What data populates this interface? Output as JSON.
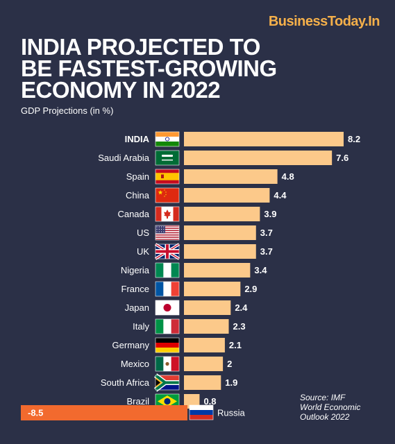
{
  "brand": "BusinessToday.In",
  "title_lines": [
    "INDIA PROJECTED TO",
    "BE FASTEST-GROWING",
    "ECONOMY IN 2022"
  ],
  "subtitle": "GDP Projections (in %)",
  "source_lines": [
    "Source: IMF",
    "World Economic",
    "Outlook 2022"
  ],
  "colors": {
    "background": "#2b3047",
    "bar_positive": "#fcc98a",
    "bar_negative": "#f26a2e",
    "brand": "#f5b04a"
  },
  "chart_data": {
    "type": "bar",
    "orientation": "horizontal",
    "title": "INDIA PROJECTED TO BE FASTEST-GROWING ECONOMY IN 2022",
    "ylabel": "GDP Projections (in %)",
    "categories": [
      "INDIA",
      "Saudi Arabia",
      "Spain",
      "China",
      "Canada",
      "US",
      "UK",
      "Nigeria",
      "France",
      "Japan",
      "Italy",
      "Germany",
      "Mexico",
      "South Africa",
      "Brazil",
      "Russia"
    ],
    "values": [
      8.2,
      7.6,
      4.8,
      4.4,
      3.9,
      3.7,
      3.7,
      3.4,
      2.9,
      2.4,
      2.3,
      2.1,
      2,
      1.9,
      0.8,
      -8.5
    ],
    "value_labels": [
      "8.2",
      "7.6",
      "4.8",
      "4.4",
      "3.9",
      "3.7",
      "3.7",
      "3.4",
      "2.9",
      "2.4",
      "2.3",
      "2.1",
      "2",
      "1.9",
      "0.8",
      "-8.5"
    ],
    "flag_icons": [
      "india-flag-icon",
      "saudi-arabia-flag-icon",
      "spain-flag-icon",
      "china-flag-icon",
      "canada-flag-icon",
      "us-flag-icon",
      "uk-flag-icon",
      "nigeria-flag-icon",
      "france-flag-icon",
      "japan-flag-icon",
      "italy-flag-icon",
      "germany-flag-icon",
      "mexico-flag-icon",
      "south-africa-flag-icon",
      "brazil-flag-icon",
      "russia-flag-icon"
    ],
    "highlight": "INDIA"
  }
}
